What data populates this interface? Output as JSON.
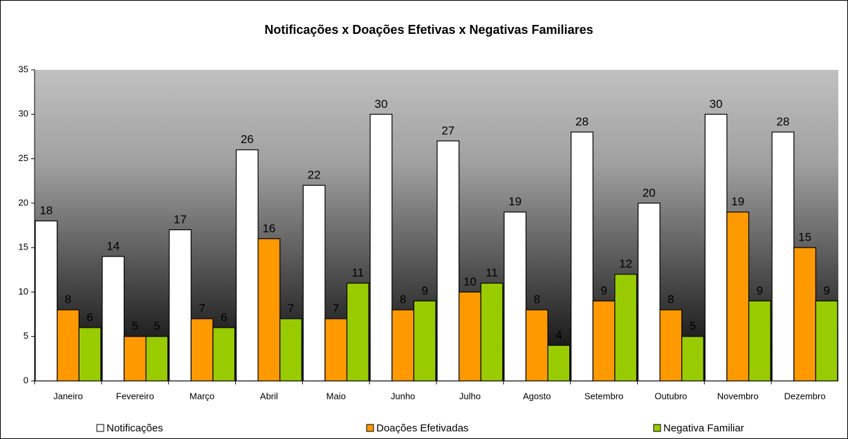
{
  "chart_data": {
    "type": "bar",
    "title": "Notificações x Doações Efetivas x Negativas Familiares",
    "categories": [
      "Janeiro",
      "Fevereiro",
      "Março",
      "Abril",
      "Maio",
      "Junho",
      "Julho",
      "Agosto",
      "Setembro",
      "Outubro",
      "Novembro",
      "Dezembro"
    ],
    "series": [
      {
        "name": "Notificações",
        "color": "#ffffff",
        "values": [
          18,
          14,
          17,
          26,
          22,
          30,
          27,
          19,
          28,
          20,
          30,
          28
        ]
      },
      {
        "name": "Doações Efetivadas",
        "color": "#ff9900",
        "values": [
          8,
          5,
          7,
          16,
          7,
          8,
          10,
          8,
          9,
          8,
          19,
          15
        ]
      },
      {
        "name": "Negativa Familiar",
        "color": "#99cc00",
        "values": [
          6,
          5,
          6,
          7,
          11,
          9,
          11,
          4,
          12,
          5,
          9,
          9
        ]
      }
    ],
    "ylim": [
      0,
      35
    ],
    "yticks": [
      0,
      5,
      10,
      15,
      20,
      25,
      30,
      35
    ],
    "legend": "bottom"
  }
}
